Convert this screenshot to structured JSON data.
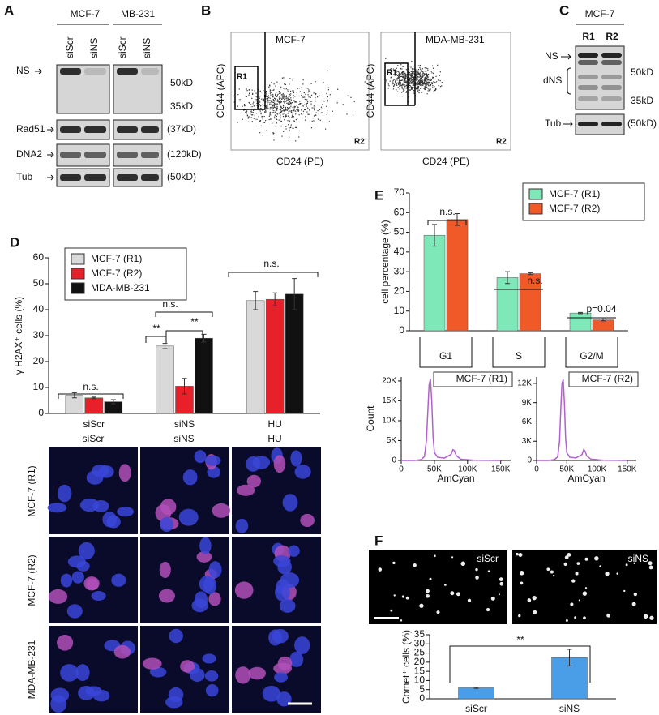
{
  "panel_letters": [
    "A",
    "B",
    "C",
    "D",
    "E",
    "F"
  ],
  "blot_a": {
    "groups": [
      "MCF-7",
      "MB-231"
    ],
    "lanes": [
      "siScr",
      "siNS",
      "siScr",
      "siNS"
    ],
    "rows": [
      "NS",
      "Rad51",
      "DNA2",
      "Tub"
    ],
    "markers": [
      "50kD",
      "35kD",
      "(37kD)",
      "(120kD)",
      "(50kD)"
    ]
  },
  "flow_b": {
    "plots": [
      "MCF-7",
      "MDA-MB-231"
    ],
    "ylabel": "CD44 (APC)",
    "xlabel": "CD24 (PE)",
    "gates": [
      "R1",
      "R2"
    ]
  },
  "blot_c": {
    "group": "MCF-7",
    "lanes": [
      "R1",
      "R2"
    ],
    "rows": [
      "NS",
      "dNS",
      "Tub"
    ],
    "markers": [
      "50kD",
      "35kD",
      "(50kD)"
    ]
  },
  "images_d": {
    "columns": [
      "siScr",
      "siNS",
      "HU"
    ],
    "rows": [
      "MCF-7 (R1)",
      "MCF-7 (R2)",
      "MDA-MB-231"
    ]
  },
  "images_f": {
    "labels": [
      "siScr",
      "siNS"
    ]
  },
  "chart_data": [
    {
      "type": "bar",
      "ylabel": "γ H2AX⁺ cells (%)",
      "categories": [
        "siScr",
        "siNS",
        "HU"
      ],
      "series": [
        {
          "name": "MCF-7 (R1)",
          "color": "#d9d9d9",
          "values": [
            7,
            26,
            43.5
          ],
          "errors": [
            1,
            1,
            3.5
          ]
        },
        {
          "name": "MCF-7 (R2)",
          "color": "#e8202a",
          "values": [
            6,
            10.5,
            44
          ],
          "errors": [
            0.3,
            3,
            2.5
          ]
        },
        {
          "name": "MDA-MB-231",
          "color": "#111111",
          "values": [
            4.5,
            29,
            46
          ],
          "errors": [
            0.8,
            1.5,
            6
          ]
        }
      ],
      "ylim": [
        0,
        60
      ],
      "yticks": [
        0,
        10,
        20,
        30,
        40,
        50,
        60
      ],
      "legend": "top-left",
      "annotations": [
        "n.s.",
        "**",
        "**",
        "n.s.",
        "n.s."
      ]
    },
    {
      "type": "bar",
      "ylabel": "cell percentage (%)",
      "categories": [
        "G1",
        "S",
        "G2/M"
      ],
      "series": [
        {
          "name": "MCF-7 (R1)",
          "color": "#7fe8b9",
          "values": [
            48.5,
            27,
            9
          ],
          "errors": [
            5.5,
            3,
            0.3
          ]
        },
        {
          "name": "MCF-7 (R2)",
          "color": "#f05a28",
          "values": [
            56.5,
            29,
            5.5
          ],
          "errors": [
            3,
            0.5,
            0.5
          ]
        }
      ],
      "ylim": [
        0,
        70
      ],
      "yticks": [
        0,
        10,
        20,
        30,
        40,
        50,
        60,
        70
      ],
      "legend": "top-right",
      "annotations": [
        "n.s.",
        "n.s.",
        "p=0.04"
      ]
    },
    {
      "type": "line",
      "title": "MCF-7 (R1)",
      "ylabel": "Count",
      "xlabel": "AmCyan",
      "color": "#b25fd0",
      "x": [
        0,
        20000,
        30000,
        35000,
        38000,
        40000,
        42000,
        44000,
        46000,
        48000,
        50000,
        55000,
        65000,
        75000,
        78000,
        80000,
        83000,
        90000,
        110000,
        150000
      ],
      "y": [
        0,
        0,
        200,
        1000,
        5000,
        12000,
        19000,
        20500,
        15000,
        6000,
        2000,
        800,
        600,
        1500,
        2700,
        2500,
        1200,
        300,
        50,
        0
      ],
      "xlim": [
        0,
        165000
      ],
      "xticks": [
        0,
        {
          "value": 50000,
          "label": "50K"
        },
        {
          "value": 100000,
          "label": "100K"
        },
        {
          "value": 150000,
          "label": "150K"
        }
      ],
      "ylim": [
        0,
        21000
      ],
      "yticks": [
        0,
        {
          "value": 5000,
          "label": "5K"
        },
        {
          "value": 10000,
          "label": "10K"
        },
        {
          "value": 15000,
          "label": "15K"
        },
        {
          "value": 20000,
          "label": "20K"
        }
      ]
    },
    {
      "type": "line",
      "title": "MCF-7 (R2)",
      "xlabel": "AmCyan",
      "color": "#b25fd0",
      "x": [
        0,
        20000,
        30000,
        35000,
        38000,
        40000,
        42000,
        44000,
        46000,
        48000,
        50000,
        55000,
        65000,
        75000,
        78000,
        80000,
        83000,
        90000,
        110000,
        150000
      ],
      "y": [
        0,
        0,
        150,
        600,
        3000,
        8000,
        12000,
        12600,
        9000,
        3500,
        1200,
        500,
        400,
        900,
        1700,
        1500,
        700,
        200,
        30,
        0
      ],
      "xlim": [
        0,
        165000
      ],
      "xticks": [
        0,
        {
          "value": 50000,
          "label": "50K"
        },
        {
          "value": 100000,
          "label": "100K"
        },
        {
          "value": 150000,
          "label": "150K"
        }
      ],
      "ylim": [
        0,
        13000
      ],
      "yticks": [
        0,
        {
          "value": 3000,
          "label": "3K"
        },
        {
          "value": 6000,
          "label": "6K"
        },
        {
          "value": 9000,
          "label": "9K"
        },
        {
          "value": 12000,
          "label": "12K"
        }
      ]
    },
    {
      "type": "bar",
      "ylabel": "Comet⁺ cells (%)",
      "categories": [
        "siScr",
        "siNS"
      ],
      "values": [
        6,
        22.5
      ],
      "errors": [
        0.3,
        4.5
      ],
      "color": "#4a9ee8",
      "ylim": [
        0,
        35
      ],
      "yticks": [
        0,
        5,
        10,
        15,
        20,
        25,
        30,
        35
      ],
      "annotations": [
        "**"
      ]
    }
  ]
}
